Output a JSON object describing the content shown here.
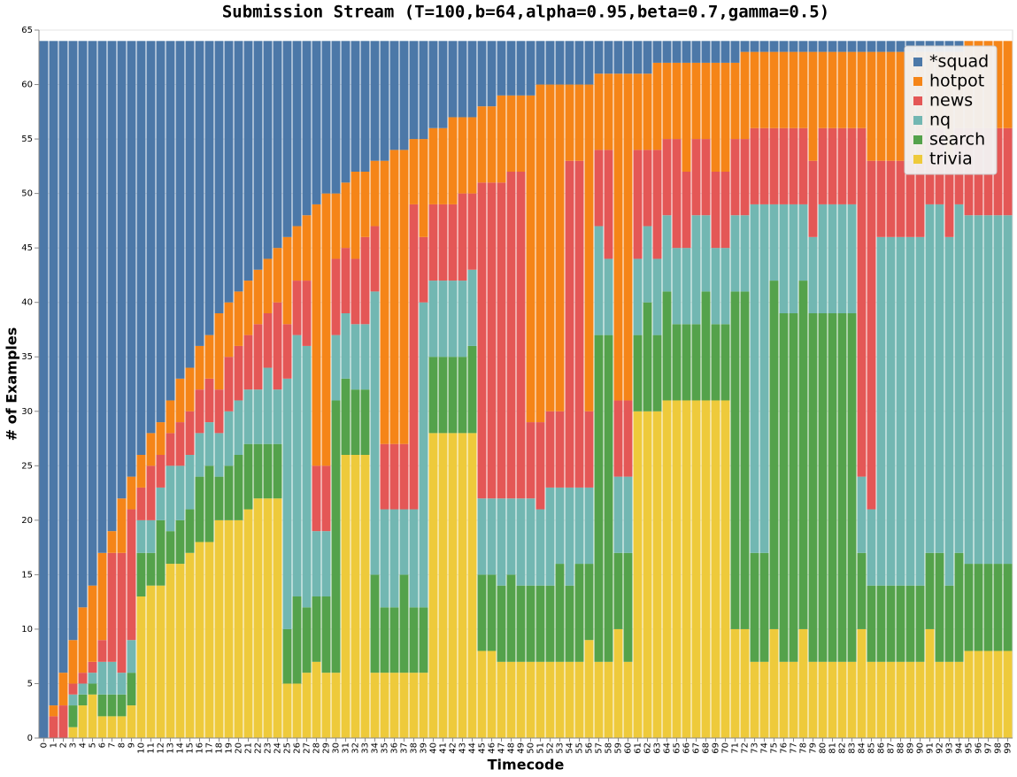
{
  "chart_data": {
    "type": "stacked_bar",
    "title": "Submission Stream (T=100,b=64,alpha=0.95,beta=0.7,gamma=0.5)",
    "x_label": "Timecode",
    "y_label": "# of Examples",
    "categories": [
      "0",
      "1",
      "2",
      "3",
      "4",
      "5",
      "6",
      "7",
      "8",
      "9",
      "10",
      "11",
      "12",
      "13",
      "14",
      "15",
      "16",
      "17",
      "18",
      "19",
      "20",
      "21",
      "22",
      "23",
      "24",
      "25",
      "26",
      "27",
      "28",
      "29",
      "30",
      "31",
      "32",
      "33",
      "34",
      "35",
      "36",
      "37",
      "38",
      "39",
      "40",
      "41",
      "42",
      "43",
      "44",
      "45",
      "46",
      "47",
      "48",
      "49",
      "50",
      "51",
      "52",
      "53",
      "54",
      "55",
      "56",
      "57",
      "58",
      "59",
      "60",
      "61",
      "62",
      "63",
      "64",
      "65",
      "66",
      "67",
      "68",
      "69",
      "70",
      "71",
      "72",
      "73",
      "74",
      "75",
      "76",
      "77",
      "78",
      "79",
      "80",
      "81",
      "82",
      "83",
      "84",
      "85",
      "86",
      "87",
      "88",
      "89",
      "90",
      "91",
      "92",
      "93",
      "94",
      "95",
      "96",
      "97",
      "98",
      "99"
    ],
    "series": [
      {
        "name": "*squad",
        "color": "#4c78a8",
        "values": [
          64,
          61,
          58,
          55,
          52,
          50,
          47,
          45,
          42,
          40,
          38,
          36,
          35,
          33,
          31,
          30,
          28,
          27,
          25,
          24,
          23,
          22,
          21,
          20,
          19,
          18,
          17,
          16,
          15,
          14,
          14,
          13,
          12,
          12,
          11,
          11,
          10,
          10,
          9,
          9,
          8,
          8,
          7,
          7,
          7,
          6,
          6,
          5,
          5,
          5,
          5,
          4,
          4,
          4,
          4,
          4,
          4,
          3,
          3,
          3,
          3,
          3,
          3,
          2,
          2,
          2,
          2,
          2,
          2,
          2,
          2,
          2,
          1,
          1,
          1,
          1,
          1,
          1,
          1,
          1,
          1,
          1,
          1,
          1,
          1,
          1,
          1,
          1,
          1,
          1,
          1,
          1,
          1,
          1,
          1,
          0,
          0,
          0,
          0,
          0
        ]
      },
      {
        "name": "hotpot",
        "color": "#f58518",
        "values": [
          0,
          1,
          3,
          4,
          6,
          7,
          8,
          2,
          5,
          3,
          3,
          3,
          3,
          3,
          4,
          4,
          4,
          4,
          7,
          5,
          5,
          5,
          5,
          5,
          5,
          8,
          5,
          6,
          24,
          25,
          6,
          6,
          8,
          6,
          6,
          26,
          27,
          27,
          6,
          9,
          7,
          7,
          8,
          7,
          7,
          7,
          7,
          8,
          7,
          7,
          30,
          31,
          30,
          30,
          7,
          7,
          30,
          7,
          7,
          30,
          30,
          7,
          7,
          8,
          7,
          7,
          10,
          7,
          7,
          10,
          10,
          7,
          8,
          7,
          7,
          7,
          7,
          7,
          7,
          10,
          7,
          7,
          7,
          7,
          7,
          10,
          10,
          10,
          10,
          10,
          10,
          7,
          7,
          10,
          7,
          8,
          8,
          8,
          8,
          8
        ]
      },
      {
        "name": "news",
        "color": "#e45756",
        "values": [
          0,
          2,
          3,
          1,
          1,
          1,
          2,
          10,
          11,
          12,
          3,
          5,
          3,
          3,
          4,
          4,
          4,
          4,
          4,
          5,
          5,
          5,
          6,
          5,
          8,
          5,
          5,
          6,
          6,
          6,
          7,
          6,
          6,
          8,
          6,
          6,
          6,
          6,
          28,
          6,
          7,
          7,
          7,
          8,
          7,
          29,
          29,
          29,
          30,
          30,
          7,
          8,
          7,
          7,
          30,
          30,
          7,
          7,
          10,
          7,
          7,
          10,
          7,
          10,
          7,
          10,
          7,
          7,
          7,
          7,
          7,
          7,
          7,
          7,
          7,
          7,
          7,
          7,
          7,
          7,
          7,
          7,
          7,
          7,
          32,
          32,
          7,
          7,
          7,
          7,
          7,
          7,
          7,
          7,
          7,
          8,
          8,
          8,
          8,
          8
        ]
      },
      {
        "name": "nq",
        "color": "#72b7b2",
        "values": [
          0,
          0,
          0,
          1,
          1,
          1,
          3,
          3,
          2,
          3,
          3,
          3,
          3,
          6,
          5,
          5,
          4,
          4,
          4,
          5,
          5,
          5,
          5,
          7,
          5,
          23,
          24,
          24,
          6,
          6,
          6,
          6,
          6,
          6,
          26,
          9,
          9,
          6,
          9,
          28,
          7,
          7,
          7,
          7,
          7,
          7,
          7,
          8,
          7,
          8,
          8,
          7,
          9,
          7,
          9,
          7,
          7,
          10,
          7,
          7,
          7,
          7,
          7,
          7,
          7,
          7,
          7,
          10,
          7,
          7,
          7,
          7,
          7,
          32,
          32,
          7,
          10,
          10,
          7,
          7,
          10,
          10,
          10,
          10,
          7,
          7,
          32,
          32,
          32,
          32,
          32,
          32,
          32,
          32,
          32,
          32,
          32,
          32,
          32,
          32
        ]
      },
      {
        "name": "search",
        "color": "#54a24b",
        "values": [
          0,
          0,
          0,
          2,
          1,
          1,
          2,
          2,
          2,
          3,
          4,
          3,
          6,
          3,
          4,
          4,
          6,
          7,
          4,
          5,
          6,
          6,
          5,
          5,
          5,
          5,
          8,
          6,
          6,
          7,
          25,
          7,
          6,
          6,
          9,
          6,
          6,
          9,
          6,
          6,
          7,
          7,
          7,
          7,
          8,
          7,
          7,
          7,
          8,
          7,
          7,
          7,
          7,
          9,
          7,
          9,
          7,
          30,
          30,
          7,
          10,
          7,
          10,
          7,
          10,
          7,
          7,
          7,
          10,
          7,
          7,
          31,
          31,
          10,
          10,
          32,
          32,
          32,
          32,
          32,
          32,
          32,
          32,
          32,
          7,
          7,
          7,
          7,
          7,
          7,
          7,
          7,
          10,
          7,
          10,
          8,
          8,
          8,
          8,
          8
        ]
      },
      {
        "name": "trivia",
        "color": "#eeca3b",
        "values": [
          0,
          0,
          0,
          1,
          3,
          4,
          2,
          2,
          2,
          3,
          13,
          14,
          14,
          16,
          16,
          17,
          18,
          18,
          20,
          20,
          20,
          21,
          22,
          22,
          22,
          5,
          5,
          6,
          7,
          6,
          6,
          26,
          26,
          26,
          6,
          6,
          6,
          6,
          6,
          6,
          28,
          28,
          28,
          28,
          28,
          8,
          8,
          7,
          7,
          7,
          7,
          7,
          7,
          7,
          7,
          7,
          9,
          7,
          7,
          10,
          7,
          30,
          30,
          30,
          31,
          31,
          31,
          31,
          31,
          31,
          31,
          10,
          10,
          7,
          7,
          10,
          7,
          7,
          10,
          7,
          7,
          7,
          7,
          7,
          10,
          7,
          7,
          7,
          7,
          7,
          7,
          10,
          7,
          7,
          7,
          8,
          8,
          8,
          8,
          8
        ]
      }
    ],
    "ylim": [
      0,
      65
    ],
    "yticks": [
      0,
      5,
      10,
      15,
      20,
      25,
      30,
      35,
      40,
      45,
      50,
      55,
      60,
      65
    ],
    "grid": true,
    "legend": "top-right"
  }
}
